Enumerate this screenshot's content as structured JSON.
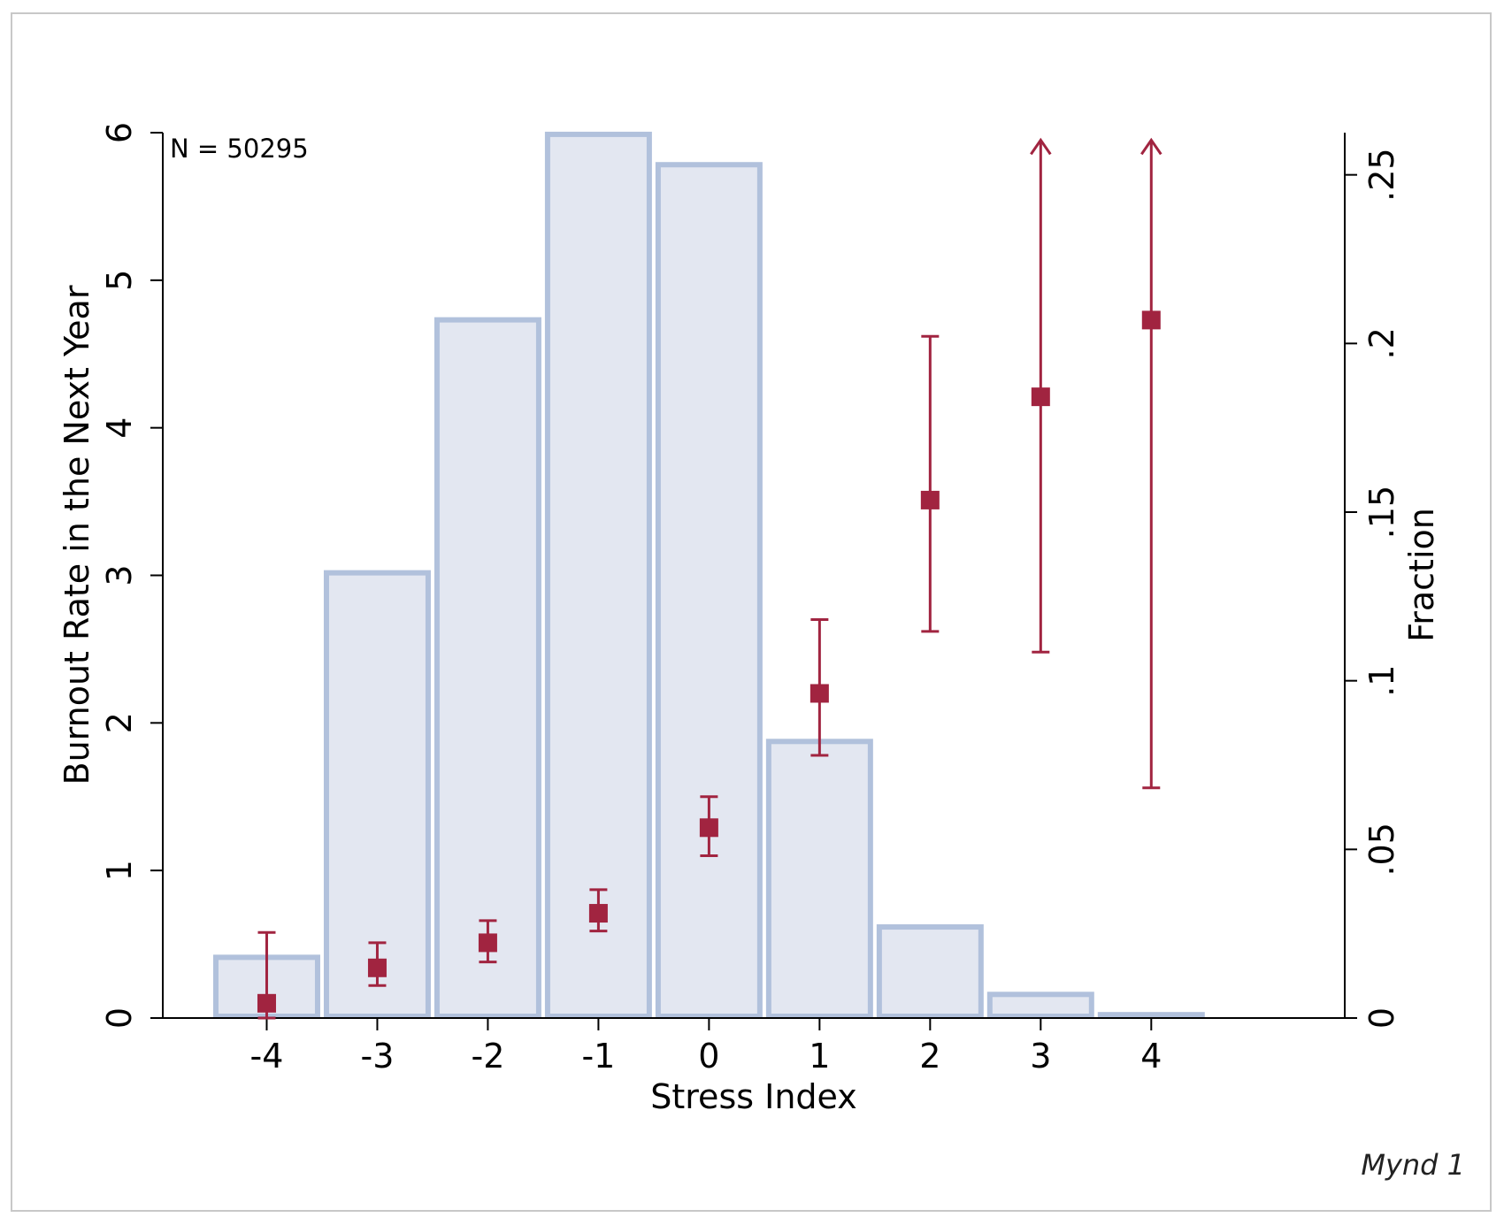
{
  "chart_data": {
    "type": "bar",
    "annotation": "N = 50295",
    "caption": "Mynd 1",
    "xlabel": "Stress Index",
    "ylabel_left": "Burnout Rate in the Next Year",
    "ylabel_right": "Fraction",
    "x_ticks": [
      "-4",
      "-3",
      "-2",
      "-1",
      "0",
      "1",
      "2",
      "3",
      "4"
    ],
    "y_left_ticks": [
      "0",
      "1",
      "2",
      "3",
      "4",
      "5",
      "6"
    ],
    "y_right_ticks": [
      "0",
      ".05",
      ".1",
      ".15",
      ".2",
      ".25"
    ],
    "ylim_left": [
      0,
      6
    ],
    "ylim_right": [
      0,
      0.2625
    ],
    "x": [
      -4,
      -3,
      -2,
      -1,
      0,
      1,
      2,
      3,
      4
    ],
    "series": [
      {
        "kind": "histogram",
        "axis": "right",
        "values": [
          0.018,
          0.132,
          0.207,
          0.262,
          0.253,
          0.082,
          0.027,
          0.007,
          0.001
        ]
      },
      {
        "kind": "point-with-ci",
        "axis": "left",
        "values": [
          0.1,
          0.34,
          0.51,
          0.71,
          1.29,
          2.2,
          3.51,
          4.21,
          4.73
        ],
        "ci_low": [
          0.0,
          0.22,
          0.38,
          0.59,
          1.1,
          1.78,
          2.62,
          2.48,
          1.56
        ],
        "ci_high": [
          0.58,
          0.51,
          0.66,
          0.87,
          1.5,
          2.7,
          4.62,
          5.95,
          5.95
        ],
        "ci_truncated_top": [
          false,
          false,
          false,
          false,
          false,
          false,
          false,
          true,
          true
        ]
      }
    ],
    "colors": {
      "bar_fill": "#e3e7f1",
      "bar_stroke": "#b1c1dc",
      "point": "#a12440",
      "axis": "#000000"
    }
  }
}
